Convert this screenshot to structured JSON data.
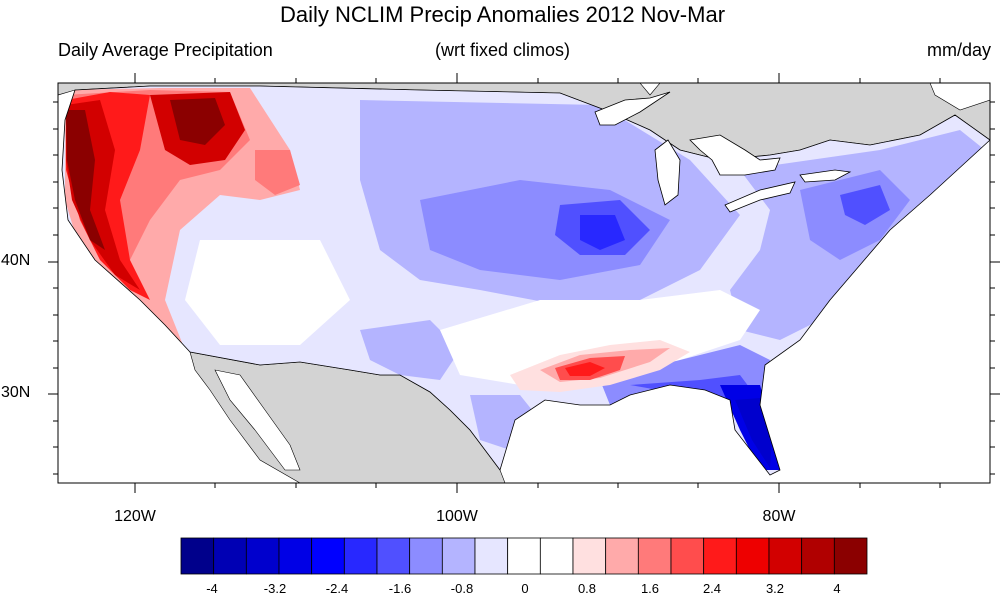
{
  "title": "Daily NCLIM Precip Anomalies 2012 Nov-Mar",
  "subtitle_left": "Daily Average Precipitation",
  "subtitle_center": "(wrt fixed climos)",
  "subtitle_right": "mm/day",
  "axes": {
    "lat_labels": [
      "40N",
      "30N"
    ],
    "lon_labels": [
      "120W",
      "100W",
      "80W"
    ]
  },
  "colorbar": {
    "colors": [
      "#00008b",
      "#0000b4",
      "#0000cd",
      "#0000e6",
      "#0000ff",
      "#2828ff",
      "#5050ff",
      "#8c8cff",
      "#b4b4ff",
      "#e6e6ff",
      "#ffffff",
      "#ffffff",
      "#ffe0e0",
      "#ffaaaa",
      "#ff7a7a",
      "#ff4d4d",
      "#ff1a1a",
      "#ee0000",
      "#d20000",
      "#b00000",
      "#8b0000"
    ],
    "labels": [
      "-4",
      "-3.2",
      "-2.4",
      "-1.6",
      "-0.8",
      "0",
      "0.8",
      "1.6",
      "2.4",
      "3.2",
      "4"
    ]
  },
  "land_color": "#d3d3d3",
  "water_color": "#ffffff"
}
